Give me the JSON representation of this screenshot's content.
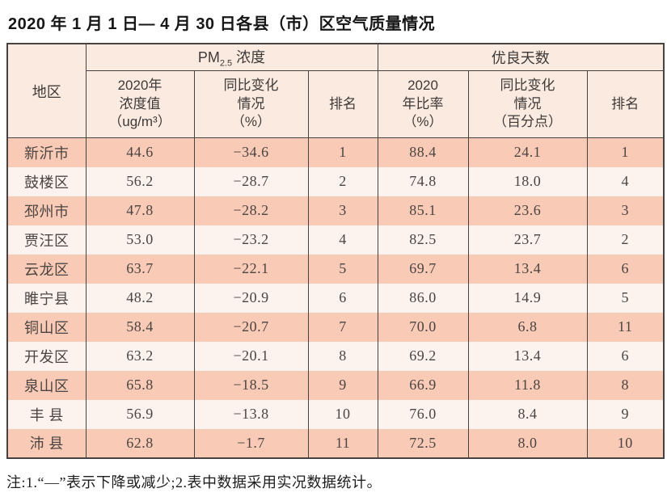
{
  "title": "2020 年 1 月 1 日— 4 月 30 日各县（市）区空气质量情况",
  "table": {
    "col_region": "地区",
    "group_pm25": {
      "prefix": "PM",
      "sub": "2.5",
      "suffix": " 浓度"
    },
    "group_good_days": "优良天数",
    "sub_headers": [
      "2020年\n浓度值\n（ug/m³）",
      "同比变化\n情况\n（%）",
      "排名",
      "2020\n年比率\n（%）",
      "同比变化\n情况\n（百分点）",
      "排名"
    ],
    "rows": [
      [
        "新沂市",
        "44.6",
        "−34.6",
        "1",
        "88.4",
        "24.1",
        "1"
      ],
      [
        "鼓楼区",
        "56.2",
        "−28.7",
        "2",
        "74.8",
        "18.0",
        "4"
      ],
      [
        "邳州市",
        "47.8",
        "−28.2",
        "3",
        "85.1",
        "23.6",
        "3"
      ],
      [
        "贾汪区",
        "53.0",
        "−23.2",
        "4",
        "82.5",
        "23.7",
        "2"
      ],
      [
        "云龙区",
        "63.7",
        "−22.1",
        "5",
        "69.7",
        "13.4",
        "6"
      ],
      [
        "睢宁县",
        "48.2",
        "−20.9",
        "6",
        "86.0",
        "14.9",
        "5"
      ],
      [
        "铜山区",
        "58.4",
        "−20.7",
        "7",
        "70.0",
        "6.8",
        "11"
      ],
      [
        "开发区",
        "63.2",
        "−20.1",
        "8",
        "69.2",
        "13.4",
        "6"
      ],
      [
        "泉山区",
        "65.8",
        "−18.5",
        "9",
        "66.9",
        "11.8",
        "8"
      ],
      [
        "丰 县",
        "56.9",
        "−13.8",
        "10",
        "76.0",
        "8.4",
        "9"
      ],
      [
        "沛 县",
        "62.8",
        "−1.7",
        "11",
        "72.5",
        "8.0",
        "10"
      ]
    ]
  },
  "note": "注:1.“—”表示下降或减少;2.表中数据采用实况数据统计。",
  "colors": {
    "header_bg": "#fbeadf",
    "row_odd_bg": "#f9cab5",
    "row_even_bg": "#fdf3ee",
    "border": "#454241",
    "title_text": "#161616",
    "cell_text": "#4a4442"
  }
}
